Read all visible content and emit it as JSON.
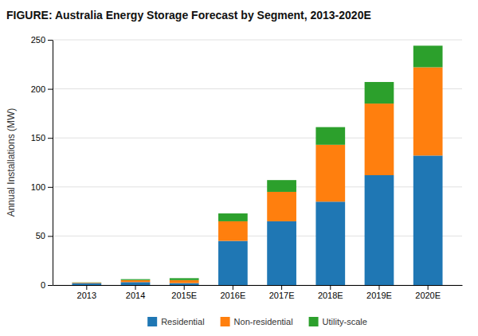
{
  "chart_data": {
    "type": "bar",
    "stacked": true,
    "title": "FIGURE: Australia Energy Storage Forecast by Segment, 2013-2020E",
    "ylabel": "Annual Installations (MW)",
    "categories": [
      "2013",
      "2014",
      "2015E",
      "2016E",
      "2017E",
      "2018E",
      "2019E",
      "2020E"
    ],
    "series": [
      {
        "name": "Residential",
        "values": [
          2,
          3,
          2,
          45,
          65,
          85,
          112,
          132
        ]
      },
      {
        "name": "Non-residential",
        "values": [
          0.5,
          2,
          3,
          20,
          30,
          58,
          73,
          90
        ]
      },
      {
        "name": "Utility-scale",
        "values": [
          0.2,
          1,
          2,
          8,
          12,
          18,
          22,
          22
        ]
      }
    ],
    "ylim": [
      0,
      250
    ],
    "yticks": [
      0,
      50,
      100,
      150,
      200,
      250
    ],
    "grid": true,
    "legend": "bottom"
  }
}
